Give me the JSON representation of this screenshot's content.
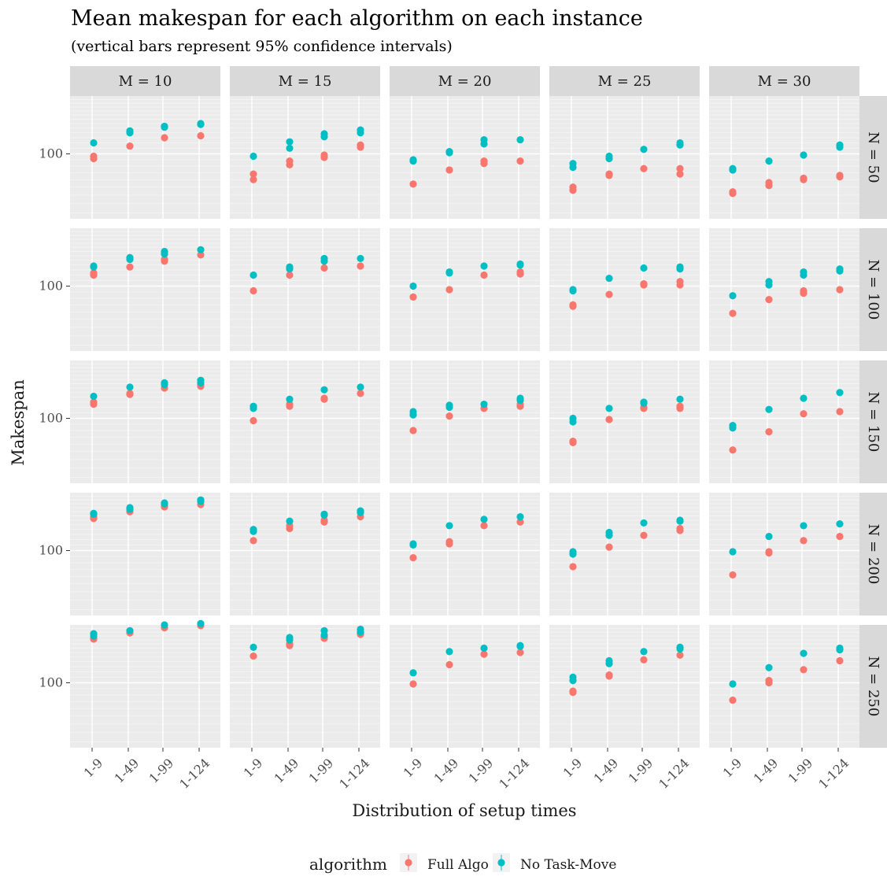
{
  "chart_data": {
    "type": "scatter",
    "title": "Mean makespan for each algorithm on each instance",
    "subtitle": "(vertical bars represent 95% confidence intervals)",
    "xlabel": "Distribution of setup times",
    "ylabel": "Makespan",
    "y_scale": "log",
    "y_tick_labels": [
      "100"
    ],
    "ylim": [
      57,
      165
    ],
    "categories": [
      "1-9",
      "1-49",
      "1-99",
      "1-124"
    ],
    "facet_cols": [
      "M = 10",
      "M = 15",
      "M = 20",
      "M = 25",
      "M = 30"
    ],
    "facet_rows": [
      "N = 50",
      "N = 100",
      "N = 150",
      "N = 200",
      "N = 250"
    ],
    "legend": {
      "title": "algorithm",
      "position": "bottom",
      "entries": [
        {
          "name": "Full Algo",
          "color": "#F8766D"
        },
        {
          "name": "No Task-Move",
          "color": "#00BFC4"
        }
      ]
    },
    "grid": true,
    "panels": [
      {
        "row": 0,
        "col": 0,
        "full_algo": [
          [
            96,
            98
          ],
          [
            107
          ],
          [
            115
          ],
          [
            117
          ]
        ],
        "no_task_move": [
          [
            110
          ],
          [
            120,
            122
          ],
          [
            126,
            127
          ],
          [
            129,
            130
          ]
        ]
      },
      {
        "row": 0,
        "col": 1,
        "full_algo": [
          [
            80,
            84
          ],
          [
            91,
            94
          ],
          [
            97,
            99
          ],
          [
            106,
            108
          ]
        ],
        "no_task_move": [
          [
            98
          ],
          [
            105,
            111
          ],
          [
            116,
            119
          ],
          [
            120,
            123
          ]
        ]
      },
      {
        "row": 0,
        "col": 2,
        "full_algo": [
          [
            77
          ],
          [
            87
          ],
          [
            92,
            94
          ],
          [
            94
          ]
        ],
        "no_task_move": [
          [
            94,
            95
          ],
          [
            101,
            102
          ],
          [
            109,
            113
          ],
          [
            113
          ]
        ]
      },
      {
        "row": 0,
        "col": 3,
        "full_algo": [
          [
            73,
            75
          ],
          [
            83,
            84
          ],
          [
            88
          ],
          [
            84,
            88
          ]
        ],
        "no_task_move": [
          [
            89,
            92
          ],
          [
            96,
            98
          ],
          [
            104
          ],
          [
            108,
            110
          ]
        ]
      },
      {
        "row": 0,
        "col": 4,
        "full_algo": [
          [
            71,
            72
          ],
          [
            76,
            78
          ],
          [
            80,
            81
          ],
          [
            82,
            83
          ]
        ],
        "no_task_move": [
          [
            87,
            88
          ],
          [
            94
          ],
          [
            99
          ],
          [
            106,
            108
          ]
        ]
      },
      {
        "row": 1,
        "col": 0,
        "full_algo": [
          [
            110,
            112
          ],
          [
            118
          ],
          [
            124,
            126
          ],
          [
            131
          ]
        ],
        "no_task_move": [
          [
            118,
            119
          ],
          [
            126,
            128
          ],
          [
            132,
            135
          ],
          [
            137
          ]
        ]
      },
      {
        "row": 1,
        "col": 1,
        "full_algo": [
          [
            96
          ],
          [
            110
          ],
          [
            117
          ],
          [
            119
          ]
        ],
        "no_task_move": [
          [
            110
          ],
          [
            116,
            118
          ],
          [
            124,
            127
          ],
          [
            127
          ]
        ]
      },
      {
        "row": 1,
        "col": 2,
        "full_algo": [
          [
            91
          ],
          [
            97
          ],
          [
            110
          ],
          [
            111,
            113
          ]
        ],
        "no_task_move": [
          [
            100
          ],
          [
            112,
            113
          ],
          [
            119
          ],
          [
            120,
            121
          ]
        ]
      },
      {
        "row": 1,
        "col": 3,
        "full_algo": [
          [
            84,
            85
          ],
          [
            93
          ],
          [
            101,
            102
          ],
          [
            101,
            104
          ]
        ],
        "no_task_move": [
          [
            96,
            97
          ],
          [
            107
          ],
          [
            117
          ],
          [
            116,
            118
          ]
        ]
      },
      {
        "row": 1,
        "col": 4,
        "full_algo": [
          [
            79
          ],
          [
            89
          ],
          [
            94,
            96
          ],
          [
            97
          ]
        ],
        "no_task_move": [
          [
            92
          ],
          [
            101,
            104
          ],
          [
            110,
            113
          ],
          [
            114,
            116
          ]
        ]
      },
      {
        "row": 2,
        "col": 0,
        "full_algo": [
          [
            113,
            115
          ],
          [
            123,
            124
          ],
          [
            130
          ],
          [
            132,
            134
          ]
        ],
        "no_task_move": [
          [
            121
          ],
          [
            131
          ],
          [
            134,
            136
          ],
          [
            136,
            139
          ]
        ]
      },
      {
        "row": 2,
        "col": 1,
        "full_algo": [
          [
            98
          ],
          [
            111,
            113
          ],
          [
            118,
            119
          ],
          [
            124
          ]
        ],
        "no_task_move": [
          [
            109,
            111
          ],
          [
            118
          ],
          [
            128
          ],
          [
            131
          ]
        ]
      },
      {
        "row": 2,
        "col": 2,
        "full_algo": [
          [
            90
          ],
          [
            102
          ],
          [
            109
          ],
          [
            111,
            113
          ]
        ],
        "no_task_move": [
          [
            103,
            106
          ],
          [
            110,
            112
          ],
          [
            113
          ],
          [
            117,
            119
          ]
        ]
      },
      {
        "row": 2,
        "col": 3,
        "full_algo": [
          [
            81,
            82
          ],
          [
            99
          ],
          [
            109,
            110
          ],
          [
            109,
            111
          ]
        ],
        "no_task_move": [
          [
            97,
            100
          ],
          [
            109
          ],
          [
            114,
            115
          ],
          [
            118
          ]
        ]
      },
      {
        "row": 2,
        "col": 4,
        "full_algo": [
          [
            76
          ],
          [
            89
          ],
          [
            104
          ],
          [
            106
          ]
        ],
        "no_task_move": [
          [
            92,
            94
          ],
          [
            108
          ],
          [
            119
          ],
          [
            125
          ]
        ]
      },
      {
        "row": 3,
        "col": 0,
        "full_algo": [
          [
            132,
            134
          ],
          [
            140
          ],
          [
            146,
            147
          ],
          [
            149
          ]
        ],
        "no_task_move": [
          [
            137,
            138
          ],
          [
            143,
            145
          ],
          [
            150,
            151
          ],
          [
            153,
            155
          ]
        ]
      },
      {
        "row": 3,
        "col": 1,
        "full_algo": [
          [
            109
          ],
          [
            121,
            124
          ],
          [
            128,
            130
          ],
          [
            134
          ]
        ],
        "no_task_move": [
          [
            118,
            120
          ],
          [
            129
          ],
          [
            136,
            137
          ],
          [
            139,
            141
          ]
        ]
      },
      {
        "row": 3,
        "col": 2,
        "full_algo": [
          [
            94
          ],
          [
            106,
            108
          ],
          [
            124
          ],
          [
            128
          ]
        ],
        "no_task_move": [
          [
            105,
            106
          ],
          [
            124
          ],
          [
            131
          ],
          [
            134
          ]
        ]
      },
      {
        "row": 3,
        "col": 3,
        "full_algo": [
          [
            87
          ],
          [
            103
          ],
          [
            114
          ],
          [
            119,
            121
          ]
        ],
        "no_task_move": [
          [
            97,
            99
          ],
          [
            114,
            117
          ],
          [
            127
          ],
          [
            129,
            130
          ]
        ]
      },
      {
        "row": 3,
        "col": 4,
        "full_algo": [
          [
            81
          ],
          [
            98,
            99
          ],
          [
            109
          ],
          [
            113
          ]
        ],
        "no_task_move": [
          [
            99
          ],
          [
            113
          ],
          [
            124
          ],
          [
            126
          ]
        ]
      },
      {
        "row": 4,
        "col": 0,
        "full_algo": [
          [
            146,
            147
          ],
          [
            154
          ],
          [
            161
          ],
          [
            164
          ]
        ],
        "no_task_move": [
          [
            150,
            153
          ],
          [
            157
          ],
          [
            165
          ],
          [
            167
          ]
        ]
      },
      {
        "row": 4,
        "col": 1,
        "full_algo": [
          [
            126
          ],
          [
            138,
            140
          ],
          [
            147,
            149
          ],
          [
            152,
            154
          ]
        ],
        "no_task_move": [
          [
            136
          ],
          [
            145,
            148
          ],
          [
            151,
            157
          ],
          [
            155,
            159
          ]
        ]
      },
      {
        "row": 4,
        "col": 2,
        "full_algo": [
          [
            99
          ],
          [
            117
          ],
          [
            128
          ],
          [
            130
          ]
        ],
        "no_task_move": [
          [
            109
          ],
          [
            131
          ],
          [
            135
          ],
          [
            137,
            138
          ]
        ]
      },
      {
        "row": 4,
        "col": 3,
        "full_algo": [
          [
            92,
            93
          ],
          [
            106,
            107
          ],
          [
            122
          ],
          [
            127
          ]
        ],
        "no_task_move": [
          [
            102,
            105
          ],
          [
            118,
            121
          ],
          [
            131
          ],
          [
            134,
            136
          ]
        ]
      },
      {
        "row": 4,
        "col": 4,
        "full_algo": [
          [
            86
          ],
          [
            100,
            102
          ],
          [
            112
          ],
          [
            121
          ]
        ],
        "no_task_move": [
          [
            99
          ],
          [
            114
          ],
          [
            129
          ],
          [
            133,
            135
          ]
        ]
      }
    ]
  }
}
